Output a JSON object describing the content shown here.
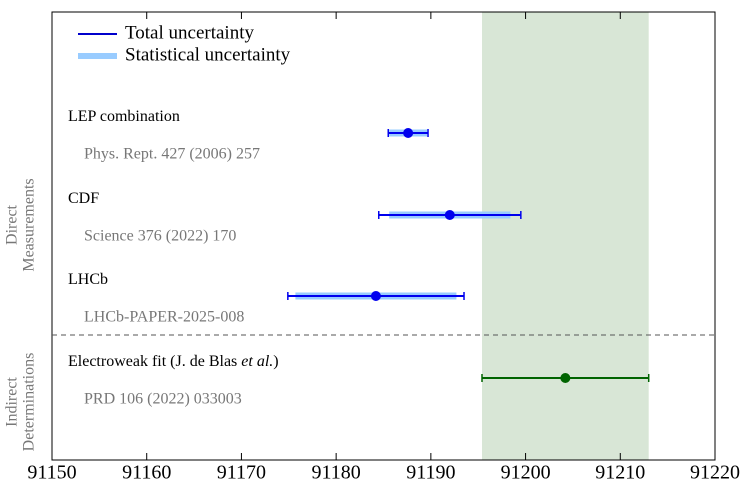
{
  "chart_data": {
    "type": "forest",
    "xlim": [
      91150,
      91220
    ],
    "xticks": [
      91150,
      91160,
      91170,
      91180,
      91190,
      91200,
      91210,
      91220
    ],
    "legend": {
      "total": "Total uncertainty",
      "stat": "Statistical uncertainty",
      "total_color": "#0000cc",
      "stat_color": "#99ccff"
    },
    "band": [
      91195.4,
      91213.0
    ],
    "band_color": "#d8e6d6",
    "groups": [
      {
        "label": [
          "Direct",
          "Measurements"
        ],
        "rows": [
          0,
          1,
          2
        ]
      },
      {
        "label": [
          "Indirect",
          "Determinations"
        ],
        "rows": [
          3
        ]
      }
    ],
    "measurements": [
      {
        "name": [
          "LEP combination"
        ],
        "reference": "Phys. Rept. 427 (2006) 257",
        "value": 91187.6,
        "total_error": 2.1,
        "stat_error": 2.0,
        "color": "#0000ee",
        "stat_color": "#99ccff"
      },
      {
        "name": [
          "CDF"
        ],
        "reference": "Science 376 (2022) 170",
        "value": 91192.0,
        "total_error": 7.5,
        "stat_error": 6.4,
        "color": "#0000ee",
        "stat_color": "#99ccff"
      },
      {
        "name": [
          "LHCb"
        ],
        "reference": "LHCb-PAPER-2025-008",
        "value": 91184.2,
        "total_error": 9.3,
        "stat_error": 8.5,
        "color": "#0000ee",
        "stat_color": "#99ccff"
      },
      {
        "name": [
          "Electroweak fit (J. de Blas ",
          "et al.",
          ")"
        ],
        "reference": "PRD 106 (2022) 033003",
        "value": 91204.2,
        "total_error": 8.8,
        "color": "#006400"
      }
    ]
  }
}
